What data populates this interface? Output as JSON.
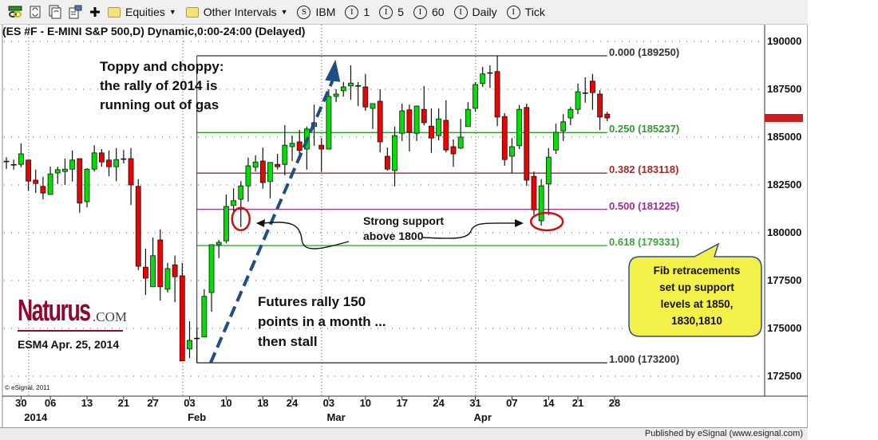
{
  "toolbar": {
    "icons": [
      "link-chart-icon",
      "refresh-icon",
      "refresh-all-icon",
      "properties-icon",
      "add-icon"
    ],
    "items": [
      {
        "type": "folder",
        "label": "Equities"
      },
      {
        "type": "folder",
        "label": "Other Intervals"
      },
      {
        "type": "symbol",
        "badge": "S",
        "label": "IBM"
      },
      {
        "type": "interval",
        "badge": "I",
        "label": "1"
      },
      {
        "type": "interval",
        "badge": "I",
        "label": "5"
      },
      {
        "type": "interval",
        "badge": "I",
        "label": "60"
      },
      {
        "type": "interval",
        "badge": "I",
        "label": "Daily"
      },
      {
        "type": "interval",
        "badge": "I",
        "label": "Tick"
      }
    ]
  },
  "chart_title": "(ES #F - E-MINI S&P 500,D) Dynamic,0:00-24:00 (Delayed)",
  "annotations": {
    "toppy": [
      "Toppy and choppy:",
      "the rally of 2014 is",
      "running out of gas"
    ],
    "rally": [
      "Futures rally 150",
      "points in a month ...",
      "then stall"
    ],
    "support": [
      "Strong support",
      "above 1800"
    ],
    "callout": [
      "Fib retracements",
      "set up support",
      "levels at 1850,",
      "1830,1810"
    ]
  },
  "logo": {
    "main": "Naturus",
    "suffix": ".COM",
    "caption": "ESM4 Apr. 25, 2014"
  },
  "copyright": "© eSignal, 2011",
  "status_bar": "Published by eSignal (www.esignal.com)",
  "colors": {
    "up": "#00e000",
    "down": "#f00000",
    "trend_arrow": "#1f4e85",
    "circle": "#cc1111",
    "callout_fill": "#f4f04a",
    "callout_border": "#2d4f8a"
  },
  "chart_data": {
    "type": "candlestick",
    "title": "(ES #F - E-MINI S&P 500,D) Dynamic,0:00-24:00 (Delayed)",
    "ylim": [
      171500,
      191000
    ],
    "y_ticks": [
      190000,
      187500,
      185000,
      182500,
      180000,
      177500,
      175000,
      172500
    ],
    "grid": true,
    "x_ticks": [
      {
        "label": "30",
        "date": "2013-12-30"
      },
      {
        "label": "06",
        "date": "2014-01-06"
      },
      {
        "label": "13",
        "date": "2014-01-13"
      },
      {
        "label": "21",
        "date": "2014-01-21"
      },
      {
        "label": "27",
        "date": "2014-01-27"
      },
      {
        "label": "03",
        "date": "2014-02-03"
      },
      {
        "label": "10",
        "date": "2014-02-10"
      },
      {
        "label": "18",
        "date": "2014-02-18"
      },
      {
        "label": "24",
        "date": "2014-02-24"
      },
      {
        "label": "03",
        "date": "2014-03-03"
      },
      {
        "label": "10",
        "date": "2014-03-10"
      },
      {
        "label": "17",
        "date": "2014-03-17"
      },
      {
        "label": "24",
        "date": "2014-03-24"
      },
      {
        "label": "31",
        "date": "2014-03-31"
      },
      {
        "label": "07",
        "date": "2014-04-07"
      },
      {
        "label": "14",
        "date": "2014-04-14"
      },
      {
        "label": "21",
        "date": "2014-04-21"
      },
      {
        "label": "28",
        "date": "2014-04-28"
      }
    ],
    "x_month_labels": [
      {
        "label": "2014",
        "date": "2014-01-02"
      },
      {
        "label": "Feb",
        "date": "2014-02-04"
      },
      {
        "label": "Mar",
        "date": "2014-03-04"
      },
      {
        "label": "Apr",
        "date": "2014-04-01"
      }
    ],
    "columns": [
      "date",
      "open",
      "high",
      "low",
      "close"
    ],
    "candles": [
      [
        "2013-12-26",
        183700,
        183950,
        183325,
        183725
      ],
      [
        "2013-12-27",
        183550,
        183825,
        183300,
        183525
      ],
      [
        "2013-12-30",
        183575,
        184675,
        183425,
        184125
      ],
      [
        "2013-12-31",
        183800,
        183800,
        182200,
        182700
      ],
      [
        "2014-01-02",
        182750,
        183300,
        182075,
        182575
      ],
      [
        "2014-01-03",
        182425,
        182925,
        181750,
        182075
      ],
      [
        "2014-01-06",
        182000,
        183450,
        182000,
        183075
      ],
      [
        "2014-01-07",
        183125,
        183450,
        182550,
        183300
      ],
      [
        "2014-01-08",
        183200,
        183875,
        182500,
        183325
      ],
      [
        "2014-01-09",
        183325,
        184300,
        182675,
        183800
      ],
      [
        "2014-01-10",
        183875,
        183875,
        181050,
        181550
      ],
      [
        "2014-01-13",
        181625,
        183375,
        181325,
        183325
      ],
      [
        "2014-01-14",
        183325,
        184575,
        183200,
        184175
      ],
      [
        "2014-01-15",
        184175,
        184375,
        183450,
        183700
      ],
      [
        "2014-01-16",
        183800,
        184300,
        182950,
        183450
      ],
      [
        "2014-01-17",
        183450,
        184425,
        182700,
        183825
      ],
      [
        "2014-01-21",
        183825,
        184325,
        183625,
        183850
      ],
      [
        "2014-01-22",
        183875,
        184425,
        181450,
        182500
      ],
      [
        "2014-01-23",
        182425,
        182800,
        178050,
        178250
      ],
      [
        "2014-01-24",
        178200,
        179175,
        176750,
        177625
      ],
      [
        "2014-01-27",
        177175,
        179750,
        177175,
        178800
      ],
      [
        "2014-01-28",
        179625,
        180175,
        176450,
        177175
      ],
      [
        "2014-01-29",
        177050,
        178425,
        176875,
        178125
      ],
      [
        "2014-01-30",
        178325,
        178800,
        176375,
        177700
      ],
      [
        "2014-01-31",
        177750,
        178425,
        173300,
        173300
      ],
      [
        "2014-02-03",
        173925,
        175375,
        173450,
        174375
      ],
      [
        "2014-02-04",
        174450,
        175050,
        173200,
        174475
      ],
      [
        "2014-02-05",
        174550,
        177050,
        174550,
        176675
      ],
      [
        "2014-02-06",
        176875,
        179375,
        175875,
        179375
      ],
      [
        "2014-02-07",
        179375,
        179625,
        178675,
        179500
      ],
      [
        "2014-02-10",
        179575,
        182000,
        179450,
        181375
      ],
      [
        "2014-02-11",
        181425,
        182325,
        181125,
        181675
      ],
      [
        "2014-02-12",
        181750,
        182700,
        180300,
        182450
      ],
      [
        "2014-02-13",
        182450,
        183925,
        181625,
        183500
      ],
      [
        "2014-02-14",
        183425,
        184050,
        183200,
        183700
      ],
      [
        "2014-02-18",
        183750,
        184450,
        182300,
        182625
      ],
      [
        "2014-02-19",
        182675,
        183675,
        181800,
        183675
      ],
      [
        "2014-02-20",
        183575,
        184125,
        183300,
        183450
      ],
      [
        "2014-02-21",
        183575,
        185625,
        183000,
        184575
      ],
      [
        "2014-02-24",
        184500,
        185075,
        183750,
        184675
      ],
      [
        "2014-02-25",
        184750,
        185375,
        183925,
        184300
      ],
      [
        "2014-02-26",
        184375,
        185550,
        183300,
        185425
      ],
      [
        "2014-02-27",
        185550,
        186700,
        184550,
        185750
      ],
      [
        "2014-02-28",
        184575,
        184950,
        183200,
        184375
      ],
      [
        "2014-03-03",
        184375,
        187500,
        184375,
        187125
      ],
      [
        "2014-03-04",
        187125,
        187500,
        186825,
        187250
      ],
      [
        "2014-03-05",
        187425,
        187875,
        187125,
        187625
      ],
      [
        "2014-03-06",
        187675,
        188750,
        186950,
        187825
      ],
      [
        "2014-03-07",
        187675,
        187875,
        186625,
        187650
      ],
      [
        "2014-03-10",
        187625,
        188300,
        186375,
        186575
      ],
      [
        "2014-03-11",
        186500,
        186750,
        185425,
        186750
      ],
      [
        "2014-03-12",
        186875,
        187500,
        184200,
        184750
      ],
      [
        "2014-03-13",
        184000,
        184450,
        183250,
        183325
      ],
      [
        "2014-03-14",
        183250,
        185550,
        182425,
        185075
      ],
      [
        "2014-03-17",
        185200,
        186750,
        184800,
        186375
      ],
      [
        "2014-03-18",
        186425,
        186700,
        184250,
        185250
      ],
      [
        "2014-03-19",
        185200,
        186625,
        184800,
        186625
      ],
      [
        "2014-03-20",
        186450,
        187675,
        185625,
        185750
      ],
      [
        "2014-03-21",
        185575,
        186500,
        184175,
        184950
      ],
      [
        "2014-03-24",
        185075,
        186500,
        184825,
        185950
      ],
      [
        "2014-03-25",
        185875,
        186925,
        184200,
        184325
      ],
      [
        "2014-03-26",
        184500,
        184875,
        183450,
        184125
      ],
      [
        "2014-03-27",
        184425,
        185950,
        184375,
        185000
      ],
      [
        "2014-03-28",
        185550,
        186825,
        185550,
        186450
      ],
      [
        "2014-03-31",
        186500,
        187875,
        186325,
        187750
      ],
      [
        "2014-04-01",
        187800,
        188675,
        187625,
        188300
      ],
      [
        "2014-04-02",
        188325,
        188750,
        187575,
        188350
      ],
      [
        "2014-04-03",
        188425,
        189250,
        185575,
        186050
      ],
      [
        "2014-04-04",
        186075,
        186250,
        183500,
        183825
      ],
      [
        "2014-04-07",
        184000,
        184950,
        183125,
        184500
      ],
      [
        "2014-04-08",
        184550,
        186675,
        184375,
        186450
      ],
      [
        "2014-04-09",
        186550,
        186750,
        182450,
        182750
      ],
      [
        "2014-04-10",
        182950,
        183200,
        180925,
        181200
      ],
      [
        "2014-04-11",
        180625,
        182800,
        180375,
        182450
      ],
      [
        "2014-04-14",
        182550,
        184425,
        180925,
        183950
      ],
      [
        "2014-04-15",
        184325,
        185700,
        184125,
        185250
      ],
      [
        "2014-04-16",
        185325,
        186200,
        184800,
        185800
      ],
      [
        "2014-04-17",
        186000,
        186575,
        185625,
        186450
      ],
      [
        "2014-04-21",
        186450,
        187800,
        186200,
        187375
      ],
      [
        "2014-04-22",
        187300,
        188125,
        186800,
        187275
      ],
      [
        "2014-04-23",
        187925,
        188300,
        186425,
        187325
      ],
      [
        "2014-04-24",
        187250,
        187450,
        185375,
        186050
      ],
      [
        "2014-04-25",
        186200,
        186325,
        185825,
        186000
      ]
    ],
    "fibonacci": {
      "from_date": "2014-02-04",
      "to_date": "2014-04-25",
      "levels": [
        {
          "ratio": 0.0,
          "value": 189250,
          "label": "0.000 (189250)",
          "color": "#333333"
        },
        {
          "ratio": 0.25,
          "value": 185237,
          "label": "0.250 (185237)",
          "color": "#2f9a2f"
        },
        {
          "ratio": 0.382,
          "value": 183118,
          "label": "0.382 (183118)",
          "color": "#a12a2a"
        },
        {
          "ratio": 0.5,
          "value": 181225,
          "label": "0.500 (181225)",
          "color": "#9a2a9a"
        },
        {
          "ratio": 0.618,
          "value": 179331,
          "label": "0.618 (179331)",
          "color": "#3aa83a"
        },
        {
          "ratio": 1.0,
          "value": 173200,
          "label": "1.000 (173200)",
          "color": "#333333"
        }
      ]
    },
    "trend_arrow": {
      "from": {
        "date": "2014-02-05",
        "value": 173200
      },
      "to": {
        "date": "2014-03-05",
        "value": 188800
      }
    },
    "circled_lows": [
      {
        "date": "2014-02-12",
        "value": 180300
      },
      {
        "date": "2014-04-11",
        "value": 180375
      }
    ]
  }
}
